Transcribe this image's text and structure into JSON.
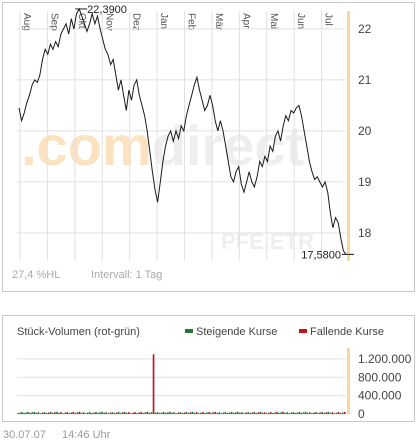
{
  "chart_data": [
    {
      "type": "line",
      "title": "",
      "watermark_text": "comdirect",
      "instrument_watermark": "PFE.ETR",
      "months": [
        "Aug",
        "Sep",
        "Okt",
        "Nov",
        "Dez",
        "Jan",
        "Feb",
        "Mär",
        "Apr",
        "Mai",
        "Jun",
        "Jul"
      ],
      "ylim": [
        17.45,
        22.35
      ],
      "yticks": [
        18,
        19,
        20,
        21,
        22
      ],
      "ytick_labels": [
        "18",
        "19",
        "20",
        "21",
        "22"
      ],
      "high_label": "22,3900",
      "high_value": 22.39,
      "low_label": "17,5800",
      "low_value": 17.58,
      "series": [
        {
          "values": [
            20.45,
            20.2,
            20.35,
            20.55,
            20.7,
            20.9,
            21.0,
            20.95,
            21.1,
            21.4,
            21.6,
            21.5,
            21.7,
            21.6,
            21.75,
            21.65,
            21.9,
            22.0,
            22.1,
            21.9,
            22.2,
            22.0,
            22.3,
            22.39,
            22.25,
            22.1,
            21.95,
            22.1,
            22.3,
            22.1,
            22.25,
            22.0,
            21.8,
            21.6,
            21.5,
            21.3,
            21.4,
            21.1,
            20.8,
            21.0,
            20.7,
            20.4,
            20.8,
            20.6,
            20.9,
            21.0,
            20.7,
            20.5,
            20.3,
            20.0,
            19.6,
            19.2,
            18.85,
            18.6,
            19.0,
            19.4,
            19.7,
            19.9,
            20.0,
            19.8,
            20.0,
            19.85,
            20.1,
            20.0,
            20.3,
            20.5,
            20.7,
            20.9,
            21.05,
            20.8,
            20.6,
            20.4,
            20.5,
            20.7,
            20.5,
            20.2,
            20.0,
            20.2,
            20.0,
            19.7,
            19.4,
            19.1,
            19.0,
            19.2,
            19.3,
            18.95,
            18.8,
            19.0,
            19.2,
            19.0,
            18.9,
            19.1,
            19.4,
            19.3,
            19.5,
            19.4,
            19.7,
            19.6,
            19.9,
            20.0,
            19.8,
            20.1,
            20.3,
            20.2,
            20.4,
            20.35,
            20.45,
            20.5,
            20.3,
            20.0,
            19.7,
            19.4,
            19.2,
            19.05,
            19.1,
            19.0,
            18.9,
            19.0,
            18.8,
            18.4,
            18.1,
            18.3,
            18.2,
            17.9,
            17.65,
            17.58
          ]
        }
      ],
      "info_volatility": "27,4 %HL",
      "info_interval": "Intervall: 1 Tag"
    },
    {
      "type": "bar",
      "title": "Stück-Volumen (rot-grün)",
      "legend": [
        {
          "label": "Steigende Kurse",
          "color": "#1f7a3a"
        },
        {
          "label": "Fallende Kurse",
          "color": "#c0151b"
        }
      ],
      "ylim": [
        0,
        1350000
      ],
      "yticks": [
        0,
        400000,
        800000,
        1200000
      ],
      "ytick_labels": [
        "0",
        "400.000",
        "800.000",
        "1.200.000"
      ],
      "spike_value": 1300000,
      "spike_index": 52,
      "typical_volume": 30000
    }
  ],
  "colors": {
    "line": "#1a1a1a",
    "grid": "#e1e1e1",
    "accent": "#f7d99a",
    "watermark_orange": "#fbe3c1",
    "watermark_grey": "#eeeeee",
    "up": "#1f7a3a",
    "down": "#c0151b"
  },
  "footer": {
    "date": "30.07.07",
    "time": "14:46 Uhr"
  }
}
